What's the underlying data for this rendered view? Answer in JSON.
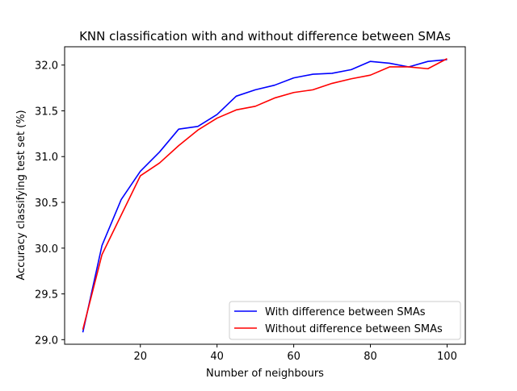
{
  "chart_data": {
    "type": "line",
    "title": "KNN classification with and without difference between SMAs",
    "xlabel": "Number of neighbours",
    "ylabel": "Accuracy classifying test set (%)",
    "xlim": [
      0.25,
      104.75
    ],
    "ylim": [
      28.95,
      32.2
    ],
    "xticks": [
      20,
      40,
      60,
      80,
      100
    ],
    "xtick_labels": [
      "20",
      "40",
      "60",
      "80",
      "100"
    ],
    "yticks": [
      29.0,
      29.5,
      30.0,
      30.5,
      31.0,
      31.5,
      32.0
    ],
    "ytick_labels": [
      "29.0",
      "29.5",
      "30.0",
      "30.5",
      "31.0",
      "31.5",
      "32.0"
    ],
    "grid": false,
    "legend_position": "lower-right",
    "x": [
      5,
      10,
      15,
      20,
      25,
      30,
      35,
      40,
      45,
      50,
      55,
      60,
      65,
      70,
      75,
      80,
      85,
      90,
      95,
      100
    ],
    "series": [
      {
        "name": "With difference between SMAs",
        "color": "#0000ff",
        "values": [
          29.08,
          30.03,
          30.53,
          30.84,
          31.05,
          31.3,
          31.33,
          31.46,
          31.66,
          31.73,
          31.78,
          31.86,
          31.9,
          31.91,
          31.95,
          32.04,
          32.02,
          31.98,
          32.04,
          32.06
        ]
      },
      {
        "name": "Without difference between SMAs",
        "color": "#ff0000",
        "values": [
          29.11,
          29.93,
          30.36,
          30.79,
          30.93,
          31.12,
          31.29,
          31.42,
          31.51,
          31.55,
          31.64,
          31.7,
          31.73,
          31.8,
          31.85,
          31.89,
          31.98,
          31.98,
          31.96,
          32.07
        ]
      }
    ]
  }
}
